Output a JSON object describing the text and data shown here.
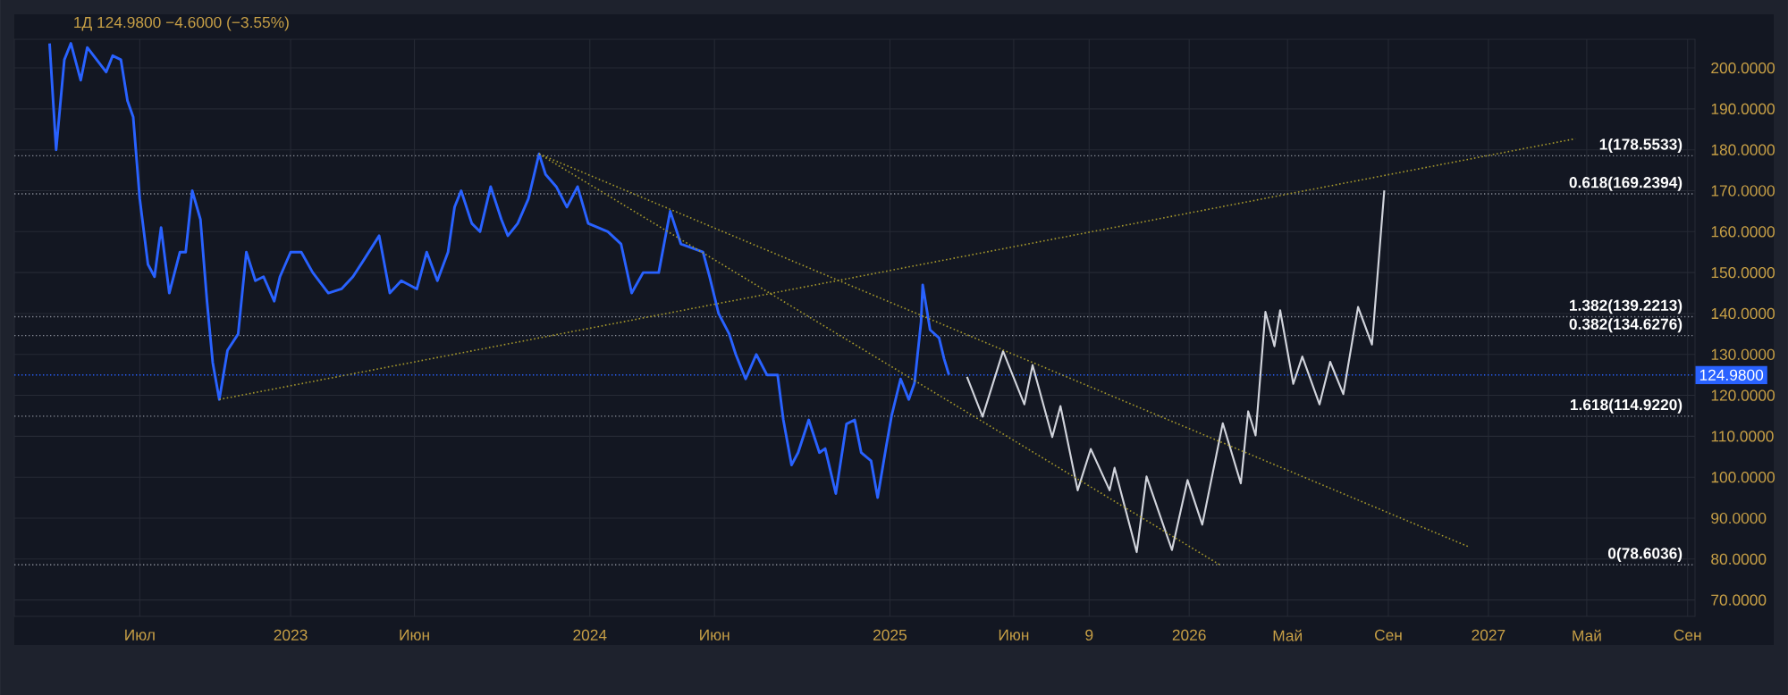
{
  "chart_data": {
    "type": "line",
    "title": "1Д  124.9800  −4.6000 (−3.55%)",
    "xlim": [
      "2022-01-29",
      "2027-09-10"
    ],
    "ylim": [
      66,
      207
    ],
    "xticks": [
      {
        "value": "2022-07",
        "label": "Июл"
      },
      {
        "value": "2023",
        "label": "2023"
      },
      {
        "value": "2023-06",
        "label": "Июн"
      },
      {
        "value": "2024",
        "label": "2024"
      },
      {
        "value": "2024-06",
        "label": "Июн"
      },
      {
        "value": "2025",
        "label": "2025"
      },
      {
        "value": "2025-06",
        "label": "Июн"
      },
      {
        "value": "2025-09",
        "label": "9"
      },
      {
        "value": "2026",
        "label": "2026"
      },
      {
        "value": "2026-05",
        "label": "Май"
      },
      {
        "value": "2026-09",
        "label": "Сен"
      },
      {
        "value": "2027",
        "label": "2027"
      },
      {
        "value": "2027-05",
        "label": "Май"
      },
      {
        "value": "2027-09",
        "label": "Сен"
      }
    ],
    "yticks": [
      {
        "value": 70,
        "label": "70.0000"
      },
      {
        "value": 80,
        "label": "80.0000"
      },
      {
        "value": 90,
        "label": "90.0000"
      },
      {
        "value": 100,
        "label": "100.0000"
      },
      {
        "value": 110,
        "label": "110.0000"
      },
      {
        "value": 120,
        "label": "120.0000"
      },
      {
        "value": 130,
        "label": "130.0000"
      },
      {
        "value": 140,
        "label": "140.0000"
      },
      {
        "value": 150,
        "label": "150.0000"
      },
      {
        "value": 160,
        "label": "160.0000"
      },
      {
        "value": 170,
        "label": "170.0000"
      },
      {
        "value": 180,
        "label": "180.0000"
      },
      {
        "value": 190,
        "label": "190.0000"
      },
      {
        "value": 200,
        "label": "200.0000"
      }
    ],
    "grid": true,
    "series": [
      {
        "color": "#2962ff",
        "x": [
          "2022-03-13",
          "2022-03-21",
          "2022-03-26",
          "2022-03-31",
          "2022-04-08",
          "2022-04-20",
          "2022-04-28",
          "2022-05-21",
          "2022-05-29",
          "2022-06-08",
          "2022-06-16",
          "2022-06-23",
          "2022-07-01",
          "2022-07-11",
          "2022-07-19",
          "2022-07-27",
          "2022-08-06",
          "2022-08-19",
          "2022-08-26",
          "2022-09-03",
          "2022-09-13",
          "2022-09-21",
          "2022-09-28",
          "2022-10-06",
          "2022-10-16",
          "2022-10-29",
          "2022-11-08",
          "2022-11-19",
          "2022-11-29",
          "2022-12-12",
          "2022-12-19",
          "2023-01-01",
          "2023-01-14",
          "2023-01-28",
          "2023-02-16",
          "2023-03-04",
          "2023-03-18",
          "2023-03-31",
          "2023-04-19",
          "2023-05-02",
          "2023-05-16",
          "2023-06-04",
          "2023-06-16",
          "2023-06-29",
          "2023-07-12",
          "2023-07-20",
          "2023-07-28",
          "2023-08-10",
          "2023-08-20",
          "2023-09-02",
          "2023-09-15",
          "2023-09-23",
          "2023-10-05",
          "2023-10-18",
          "2023-10-31",
          "2023-11-08",
          "2023-11-21",
          "2023-12-04",
          "2023-12-17",
          "2023-12-30",
          "2024-01-23",
          "2024-02-08",
          "2024-02-21",
          "2024-03-06",
          "2024-03-25",
          "2024-04-08",
          "2024-04-21",
          "2024-05-18",
          "2024-05-26",
          "2024-06-06",
          "2024-06-19",
          "2024-06-27",
          "2024-07-09",
          "2024-07-22",
          "2024-08-04",
          "2024-08-17",
          "2024-08-24",
          "2024-09-03",
          "2024-09-11",
          "2024-09-24",
          "2024-10-07",
          "2024-10-14",
          "2024-10-27",
          "2024-11-09",
          "2024-11-19",
          "2024-11-27",
          "2024-12-09",
          "2024-12-17",
          "2024-12-27",
          "2025-01-03",
          "2025-01-14",
          "2025-01-24",
          "2025-01-31",
          "2025-02-08",
          "2025-02-10",
          "2025-02-19",
          "2025-03-02",
          "2025-03-08",
          "2025-03-14"
        ],
        "values": [
          206,
          180,
          191,
          202,
          206,
          197,
          205,
          199,
          203,
          202,
          192,
          188,
          168,
          152,
          149,
          161,
          145,
          155,
          155,
          170,
          163,
          143,
          128,
          119,
          131,
          135,
          155,
          148,
          149,
          143,
          149,
          155,
          155,
          150,
          145,
          146,
          149,
          153,
          159,
          145,
          148,
          146,
          155,
          148,
          155,
          166,
          170,
          162,
          160,
          171,
          163,
          159,
          162,
          168,
          179,
          174,
          171,
          166,
          171,
          162,
          160,
          157,
          145,
          150,
          150,
          165,
          157,
          155,
          149,
          140,
          135,
          130,
          124,
          130,
          125,
          125,
          114,
          103,
          106,
          114,
          106,
          107,
          96,
          113,
          114,
          106,
          104,
          95,
          107,
          115,
          124,
          119,
          123,
          138,
          147,
          136,
          134,
          129,
          125
        ]
      },
      {
        "color": "#d1d4dc",
        "x": [
          "2025-04-05",
          "2025-04-24",
          "2025-05-19",
          "2025-06-14",
          "2025-06-24",
          "2025-07-18",
          "2025-07-28",
          "2025-08-18",
          "2025-09-03",
          "2025-09-26",
          "2025-10-02",
          "2025-10-29",
          "2025-11-10",
          "2025-12-11",
          "2025-12-30",
          "2026-01-17",
          "2026-02-11",
          "2026-03-05",
          "2026-03-14",
          "2026-03-23",
          "2026-04-04",
          "2026-04-15",
          "2026-04-22",
          "2026-05-08",
          "2026-05-19",
          "2026-06-09",
          "2026-06-22",
          "2026-07-08",
          "2026-07-26",
          "2026-08-12",
          "2026-08-27"
        ],
        "values": [
          124.5,
          114.8,
          130.8,
          117.8,
          127.4,
          109.8,
          117.4,
          96.8,
          106.9,
          96.8,
          102.3,
          81.7,
          100.2,
          82.2,
          99.3,
          88.4,
          113.2,
          98.5,
          116.1,
          110.2,
          140.4,
          132,
          140.8,
          122.8,
          129.5,
          117.8,
          128.2,
          120.3,
          141.6,
          132.4,
          170.1
        ]
      },
      {
        "color": "#a89a2c",
        "line_style": "dotted",
        "x": [
          "2022-10-06",
          "2027-04-17"
        ],
        "values": [
          119,
          182.7
        ]
      },
      {
        "color": "#a89a2c",
        "line_style": "dotted",
        "x": [
          "2023-10-31",
          "2026-12-08"
        ],
        "values": [
          179,
          83
        ]
      },
      {
        "color": "#a89a2c",
        "line_style": "dotted",
        "x": [
          "2023-10-31",
          "2026-02-09"
        ],
        "values": [
          179,
          78.4
        ]
      }
    ],
    "ref_lines": [
      {
        "axis": "y",
        "value": 178.5533,
        "label": "1(178.5533)"
      },
      {
        "axis": "y",
        "value": 169.2394,
        "label": "0.618(169.2394)"
      },
      {
        "axis": "y",
        "value": 139.2213,
        "label": "1.382(139.2213)"
      },
      {
        "axis": "y",
        "value": 134.6276,
        "label": "0.382(134.6276)"
      },
      {
        "axis": "y",
        "value": 114.922,
        "label": "1.618(114.9220)"
      },
      {
        "axis": "y",
        "value": 78.6036,
        "label": "0(78.6036)"
      },
      {
        "axis": "y",
        "value": 124.98,
        "label": "124.9800",
        "color": "#2962ff"
      }
    ]
  }
}
